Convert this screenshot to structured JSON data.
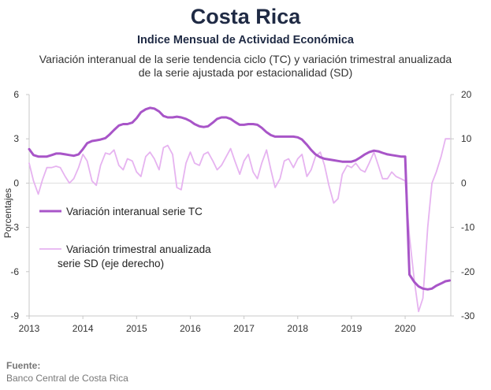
{
  "title": "Costa Rica",
  "subtitle": "Indice Mensual de  Actividad Económica",
  "description": [
    "Variación interanual de la serie tendencia ciclo (TC) y variación trimestral anualizada",
    "de la serie ajustada por estacionalidad (SD)"
  ],
  "source": {
    "label": "Fuente:",
    "text": "Banco Central de Costa Rica"
  },
  "colors": {
    "tc": "#a855c8",
    "sd": "#e6b3f0",
    "axis": "#c8c8c8",
    "grid": "#dedede"
  },
  "chart_data": {
    "type": "line",
    "ylabel": "Porcentajes",
    "ylim": [
      -9,
      6
    ],
    "ylim_right": [
      -30,
      20
    ],
    "yticks_left": [
      "6",
      "3",
      "0",
      "-3",
      "-6",
      "-9"
    ],
    "yticks_right": [
      "20",
      "10",
      "0",
      "-10",
      "-20",
      "-30"
    ],
    "xticks": [
      "2013",
      "2014",
      "2015",
      "2016",
      "2017",
      "2018",
      "2019",
      "2020"
    ],
    "xlim": [
      2013,
      2020.85
    ],
    "grid": "off",
    "legend_position": "left-middle",
    "series": [
      {
        "name": "Variación interanual serie TC",
        "axis": "left",
        "x": [
          2013.0,
          2013.08,
          2013.17,
          2013.25,
          2013.33,
          2013.42,
          2013.5,
          2013.58,
          2013.67,
          2013.75,
          2013.83,
          2013.92,
          2014.0,
          2014.08,
          2014.17,
          2014.25,
          2014.33,
          2014.42,
          2014.5,
          2014.58,
          2014.67,
          2014.75,
          2014.83,
          2014.92,
          2015.0,
          2015.08,
          2015.17,
          2015.25,
          2015.33,
          2015.42,
          2015.5,
          2015.58,
          2015.67,
          2015.75,
          2015.83,
          2015.92,
          2016.0,
          2016.08,
          2016.17,
          2016.25,
          2016.33,
          2016.42,
          2016.5,
          2016.58,
          2016.67,
          2016.75,
          2016.83,
          2016.92,
          2017.0,
          2017.08,
          2017.17,
          2017.25,
          2017.33,
          2017.42,
          2017.5,
          2017.58,
          2017.67,
          2017.75,
          2017.83,
          2017.92,
          2018.0,
          2018.08,
          2018.17,
          2018.25,
          2018.33,
          2018.42,
          2018.5,
          2018.58,
          2018.67,
          2018.75,
          2018.83,
          2018.92,
          2019.0,
          2019.08,
          2019.17,
          2019.25,
          2019.33,
          2019.42,
          2019.5,
          2019.58,
          2019.67,
          2019.75,
          2019.83,
          2019.92,
          2020.0,
          2020.08,
          2020.17,
          2020.25,
          2020.33,
          2020.42,
          2020.5,
          2020.58,
          2020.67,
          2020.75,
          2020.83
        ],
        "values": [
          2.3,
          1.9,
          1.8,
          1.8,
          1.8,
          1.9,
          2.0,
          2.0,
          1.95,
          1.9,
          1.85,
          1.95,
          2.3,
          2.7,
          2.85,
          2.9,
          2.95,
          3.05,
          3.3,
          3.6,
          3.9,
          4.0,
          4.0,
          4.1,
          4.4,
          4.8,
          5.0,
          5.1,
          5.05,
          4.85,
          4.55,
          4.45,
          4.45,
          4.5,
          4.45,
          4.35,
          4.2,
          4.0,
          3.85,
          3.8,
          3.85,
          4.1,
          4.35,
          4.45,
          4.45,
          4.35,
          4.15,
          3.95,
          3.95,
          4.0,
          4.0,
          3.95,
          3.75,
          3.45,
          3.25,
          3.15,
          3.15,
          3.15,
          3.15,
          3.15,
          3.1,
          2.95,
          2.6,
          2.25,
          1.95,
          1.75,
          1.65,
          1.6,
          1.55,
          1.5,
          1.45,
          1.45,
          1.45,
          1.55,
          1.75,
          1.95,
          2.1,
          2.2,
          2.15,
          2.05,
          1.95,
          1.9,
          1.85,
          1.8,
          1.8,
          -6.2,
          -6.7,
          -7.0,
          -7.15,
          -7.2,
          -7.15,
          -6.95,
          -6.8,
          -6.65,
          -6.6
        ]
      },
      {
        "name": "Variación trimestral anualizada serie SD (eje derecho)",
        "axis": "right",
        "x": [
          2013.0,
          2013.08,
          2013.17,
          2013.25,
          2013.33,
          2013.42,
          2013.5,
          2013.58,
          2013.67,
          2013.75,
          2013.83,
          2013.92,
          2014.0,
          2014.08,
          2014.17,
          2014.25,
          2014.33,
          2014.42,
          2014.5,
          2014.58,
          2014.67,
          2014.75,
          2014.83,
          2014.92,
          2015.0,
          2015.08,
          2015.17,
          2015.25,
          2015.33,
          2015.42,
          2015.5,
          2015.58,
          2015.67,
          2015.75,
          2015.83,
          2015.92,
          2016.0,
          2016.08,
          2016.17,
          2016.25,
          2016.33,
          2016.42,
          2016.5,
          2016.58,
          2016.67,
          2016.75,
          2016.83,
          2016.92,
          2017.0,
          2017.08,
          2017.17,
          2017.25,
          2017.33,
          2017.42,
          2017.5,
          2017.58,
          2017.67,
          2017.75,
          2017.83,
          2017.92,
          2018.0,
          2018.08,
          2018.17,
          2018.25,
          2018.33,
          2018.42,
          2018.5,
          2018.58,
          2018.67,
          2018.75,
          2018.83,
          2018.92,
          2019.0,
          2019.08,
          2019.17,
          2019.25,
          2019.33,
          2019.42,
          2019.5,
          2019.58,
          2019.67,
          2019.75,
          2019.83,
          2019.92,
          2020.0,
          2020.08,
          2020.17,
          2020.25,
          2020.33,
          2020.42,
          2020.5,
          2020.58,
          2020.67,
          2020.75,
          2020.83
        ],
        "values": [
          4.5,
          0.5,
          -2.5,
          0.8,
          3.5,
          3.5,
          3.8,
          3.5,
          1.5,
          0.0,
          1.0,
          3.5,
          6.5,
          5.0,
          0.5,
          -0.5,
          4.0,
          6.8,
          6.5,
          7.5,
          4.0,
          3.0,
          5.5,
          5.0,
          2.5,
          1.5,
          6.0,
          7.0,
          5.5,
          3.0,
          8.0,
          8.5,
          6.5,
          -1.0,
          -1.5,
          4.5,
          7.0,
          4.5,
          4.0,
          6.5,
          7.0,
          5.0,
          3.0,
          4.0,
          6.0,
          7.8,
          5.0,
          2.0,
          5.0,
          6.5,
          2.5,
          1.0,
          4.5,
          7.5,
          3.0,
          -1.0,
          1.0,
          5.0,
          5.5,
          3.5,
          5.5,
          6.5,
          1.5,
          3.0,
          6.0,
          7.0,
          4.0,
          -0.5,
          -4.5,
          -3.5,
          2.0,
          4.0,
          3.5,
          4.5,
          3.0,
          2.5,
          4.5,
          7.0,
          4.0,
          1.0,
          1.0,
          2.5,
          1.5,
          1.0,
          0.5,
          -12.0,
          -22.0,
          -29.0,
          -26.0,
          -10.0,
          0.0,
          2.5,
          6.0,
          10.0,
          10.0
        ]
      }
    ]
  }
}
